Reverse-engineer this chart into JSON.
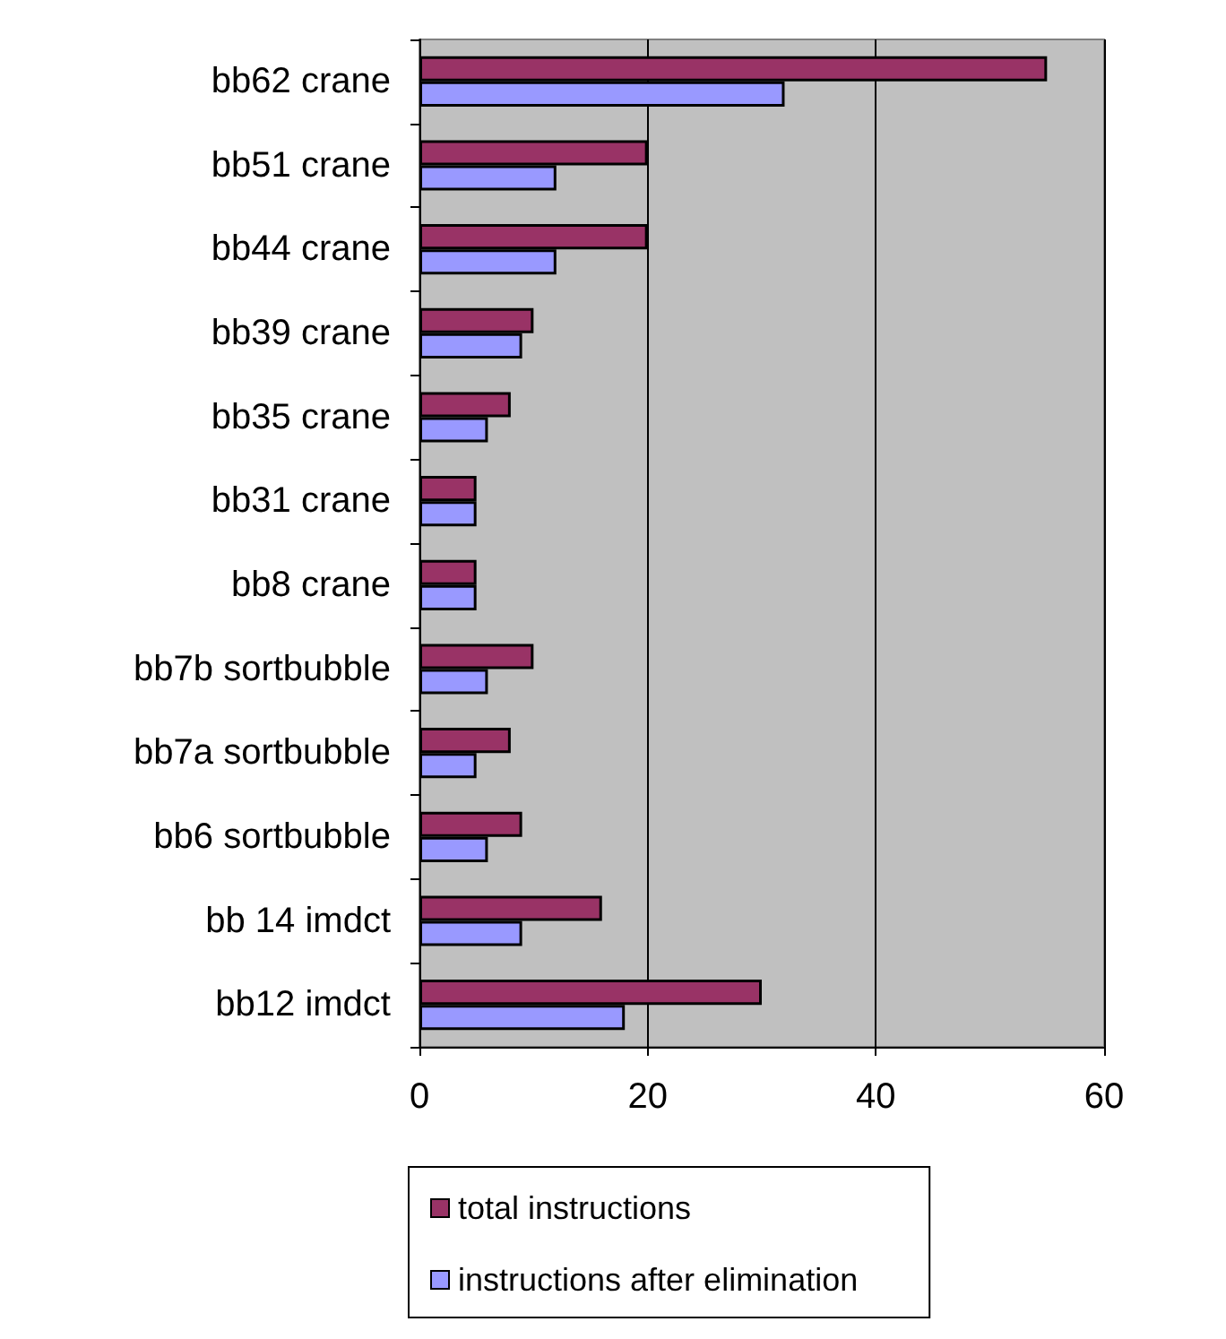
{
  "chart_data": {
    "type": "bar",
    "orientation": "horizontal",
    "categories": [
      "bb62 crane",
      "bb51 crane",
      "bb44 crane",
      "bb39 crane",
      "bb35 crane",
      "bb31 crane",
      "bb8 crane",
      "bb7b sortbubble",
      "bb7a sortbubble",
      "bb6 sortbubble",
      "bb 14 imdct",
      "bb12 imdct"
    ],
    "series": [
      {
        "name": "total instructions",
        "color": "#993366",
        "values": [
          55,
          20,
          20,
          10,
          8,
          5,
          5,
          10,
          8,
          9,
          16,
          30
        ]
      },
      {
        "name": "instructions after elimination",
        "color": "#9999ff",
        "values": [
          32,
          12,
          12,
          9,
          6,
          5,
          5,
          6,
          5,
          6,
          9,
          18
        ]
      }
    ],
    "xlim": [
      0,
      60
    ],
    "xticks": [
      0,
      20,
      40,
      60
    ],
    "grid": "x",
    "legend": "bottom"
  }
}
